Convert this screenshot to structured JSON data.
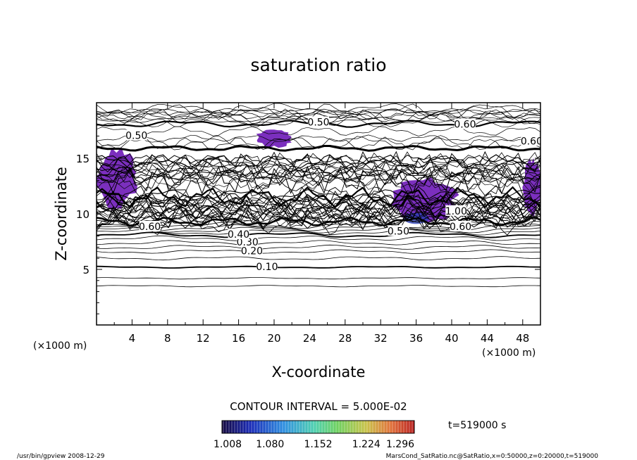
{
  "chart_data": {
    "type": "contour",
    "title": "saturation ratio",
    "xlabel": "X-coordinate",
    "ylabel": "Z-coordinate",
    "x_unit": "(×1000 m)",
    "y_unit": "(×1000 m)",
    "xlim": [
      0,
      50
    ],
    "ylim": [
      0,
      20
    ],
    "x_ticks": [
      4,
      8,
      12,
      16,
      20,
      24,
      28,
      32,
      36,
      40,
      44,
      48
    ],
    "y_ticks": [
      5,
      10,
      15
    ],
    "contour_interval_label": "CONTOUR INTERVAL = 5.000E-02",
    "time_label": "t=519000 s",
    "contour_labels": [
      {
        "text": "0.10",
        "x": 19.2,
        "z": 5.2
      },
      {
        "text": "0.20",
        "x": 17.5,
        "z": 6.6
      },
      {
        "text": "0.30",
        "x": 17.0,
        "z": 7.4
      },
      {
        "text": "0.40",
        "x": 16.0,
        "z": 8.1
      },
      {
        "text": "0.60",
        "x": 6.0,
        "z": 8.8
      },
      {
        "text": "0.50",
        "x": 25.0,
        "z": 18.2
      },
      {
        "text": "0.50",
        "x": 4.5,
        "z": 17.0
      },
      {
        "text": "0.60",
        "x": 41.5,
        "z": 18.0
      },
      {
        "text": "0.60",
        "x": 49.0,
        "z": 16.5
      },
      {
        "text": "1.00",
        "x": 40.5,
        "z": 10.2
      },
      {
        "text": "0.60",
        "x": 41.0,
        "z": 8.8
      },
      {
        "text": "0.50",
        "x": 34.0,
        "z": 8.4
      }
    ],
    "fill_regions": [
      {
        "name": "left",
        "approx_x": [
          0,
          4.5
        ],
        "approx_z": [
          10.5,
          15.8
        ]
      },
      {
        "name": "top-center",
        "approx_x": [
          18,
          22
        ],
        "approx_z": [
          16.0,
          17.6
        ]
      },
      {
        "name": "right-center",
        "approx_x": [
          33,
          40.5
        ],
        "approx_z": [
          9.2,
          13.2
        ]
      },
      {
        "name": "right-edge",
        "approx_x": [
          48,
          50
        ],
        "approx_z": [
          9.8,
          15.0
        ]
      }
    ],
    "colorbar": {
      "min": 1.008,
      "max": 1.296,
      "tick_labels": [
        "1.008",
        "1.080",
        "1.152",
        "1.224",
        "1.296"
      ],
      "colors": [
        "#1b0b6b",
        "#1f35c8",
        "#3aa0e8",
        "#4fd0a0",
        "#7fd25a",
        "#d0c84a",
        "#e07a3a",
        "#c22a2a"
      ]
    },
    "fill_color": "#7b2fbe"
  },
  "footer": {
    "left": "/usr/bin/gpview   2008-12-29",
    "right": "MarsCond_SatRatio.nc@SatRatio,x=0:50000,z=0:20000,t=519000"
  }
}
